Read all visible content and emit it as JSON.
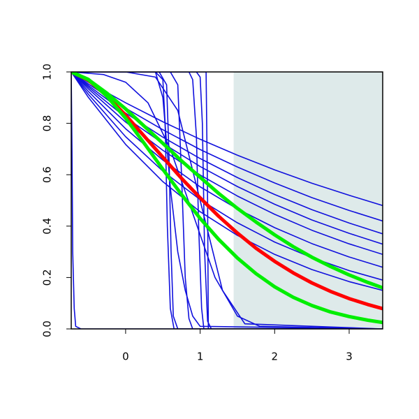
{
  "chart_data": {
    "type": "line",
    "xlim": [
      -0.73,
      3.45
    ],
    "ylim": [
      0,
      1
    ],
    "xticks": [
      0,
      1,
      2,
      3
    ],
    "yticks": [
      {
        "value": 0,
        "label": "0.0"
      },
      0.2,
      0.4,
      0.6,
      0.8,
      {
        "value": 1,
        "label": "1.0"
      }
    ],
    "highlight_x": [
      1.45,
      3.45
    ],
    "highlight_color": "#deeaea",
    "series": [
      {
        "color": "#1010dd",
        "x": [
          -0.73,
          -0.5,
          0,
          0.5,
          1,
          1.5,
          2,
          2.5,
          3,
          3.45
        ],
        "values": [
          1,
          0.96,
          0.88,
          0.806,
          0.738,
          0.676,
          0.619,
          0.567,
          0.52,
          0.48
        ]
      },
      {
        "color": "#1010dd",
        "x": [
          -0.73,
          -0.5,
          0,
          0.5,
          1,
          1.5,
          2,
          2.5,
          3,
          3.45
        ],
        "values": [
          1,
          0.953,
          0.859,
          0.775,
          0.698,
          0.63,
          0.568,
          0.511,
          0.461,
          0.42
        ]
      },
      {
        "color": "#1010dd",
        "x": [
          -0.73,
          -0.5,
          0,
          0.5,
          1,
          1.5,
          2,
          2.5,
          3,
          3.45
        ],
        "values": [
          1,
          0.947,
          0.84,
          0.746,
          0.663,
          0.589,
          0.523,
          0.464,
          0.412,
          0.37
        ]
      },
      {
        "color": "#1010dd",
        "x": [
          -0.73,
          -0.5,
          0,
          0.5,
          1,
          1.5,
          2,
          2.5,
          3,
          3.45
        ],
        "values": [
          1,
          0.941,
          0.823,
          0.722,
          0.632,
          0.554,
          0.485,
          0.424,
          0.372,
          0.33
        ]
      },
      {
        "color": "#1010dd",
        "x": [
          -0.73,
          -0.5,
          0,
          0.5,
          1,
          1.5,
          2,
          2.5,
          3,
          3.45
        ],
        "values": [
          1,
          0.934,
          0.805,
          0.695,
          0.599,
          0.517,
          0.446,
          0.384,
          0.331,
          0.29
        ]
      },
      {
        "color": "#1010dd",
        "x": [
          -0.73,
          -0.5,
          0,
          0.5,
          1,
          1.5,
          2,
          2.5,
          3,
          3.45
        ],
        "values": [
          1,
          0.924,
          0.779,
          0.657,
          0.553,
          0.467,
          0.394,
          0.332,
          0.28,
          0.24
        ]
      },
      {
        "color": "#1010dd",
        "x": [
          -0.73,
          -0.5,
          0,
          0.5,
          1,
          1.5,
          2,
          2.5,
          3,
          3.45
        ],
        "values": [
          1,
          0.913,
          0.748,
          0.614,
          0.503,
          0.413,
          0.338,
          0.277,
          0.227,
          0.19
        ]
      },
      {
        "color": "#1010dd",
        "x": [
          -0.73,
          -0.5,
          0,
          0.5,
          1,
          1.5,
          2,
          2.5,
          3,
          3.45
        ],
        "values": [
          1,
          0.901,
          0.718,
          0.573,
          0.456,
          0.364,
          0.29,
          0.231,
          0.184,
          0.15
        ]
      },
      {
        "color": "#1010dd",
        "x": [
          -0.73,
          -0.72,
          -0.71,
          -0.69,
          -0.67,
          -0.6,
          3.45
        ],
        "values": [
          1,
          0.7,
          0.3,
          0.08,
          0.01,
          0,
          0
        ]
      },
      {
        "color": "#1010dd",
        "x": [
          -0.73,
          0.4,
          0.5,
          0.53,
          0.56,
          0.6,
          0.65,
          3.45
        ],
        "values": [
          1,
          1,
          0.97,
          0.8,
          0.4,
          0.08,
          0,
          0
        ]
      },
      {
        "color": "#1010dd",
        "x": [
          -0.73,
          0.45,
          0.55,
          0.58,
          0.61,
          0.64,
          0.7,
          3.45
        ],
        "values": [
          1,
          1,
          0.95,
          0.7,
          0.3,
          0.05,
          0,
          0
        ]
      },
      {
        "color": "#1010dd",
        "x": [
          -0.73,
          0.6,
          0.7,
          0.75,
          0.8,
          0.85,
          0.9,
          3.45
        ],
        "values": [
          1,
          1,
          0.95,
          0.6,
          0.2,
          0.04,
          0,
          0
        ]
      },
      {
        "color": "#1010dd",
        "x": [
          -0.73,
          0.85,
          0.9,
          0.95,
          0.98,
          1.02,
          1.05,
          3.45
        ],
        "values": [
          1,
          1,
          0.97,
          0.75,
          0.4,
          0.08,
          0,
          0
        ]
      },
      {
        "color": "#1010dd",
        "x": [
          -0.73,
          0.95,
          1.0,
          1.03,
          1.06,
          1.1,
          1.15,
          3.45
        ],
        "values": [
          1,
          1,
          0.98,
          0.8,
          0.3,
          0.03,
          0,
          0
        ]
      },
      {
        "color": "#1010dd",
        "x": [
          -0.73,
          1.08,
          1.1,
          1.11,
          3.45
        ],
        "values": [
          1,
          1,
          0.5,
          0,
          0
        ]
      },
      {
        "color": "#1010dd",
        "x": [
          -0.73,
          -0.3,
          0,
          0.3,
          0.6,
          0.9,
          1.2,
          1.5,
          1.8,
          3.45
        ],
        "values": [
          1,
          0.99,
          0.96,
          0.88,
          0.7,
          0.45,
          0.2,
          0.05,
          0.01,
          0
        ]
      },
      {
        "color": "#1010dd",
        "x": [
          -0.73,
          0,
          0.4,
          0.7,
          1.0,
          1.3,
          1.6,
          3.45
        ],
        "values": [
          1,
          1,
          0.98,
          0.85,
          0.5,
          0.15,
          0.02,
          0
        ]
      },
      {
        "color": "#1010dd",
        "x": [
          -0.73,
          0.4,
          0.5,
          0.6,
          0.7,
          0.8,
          0.9,
          1.0,
          3.45
        ],
        "values": [
          1,
          1,
          0.9,
          0.55,
          0.3,
          0.15,
          0.05,
          0.01,
          0
        ]
      },
      {
        "color": "#ff0000",
        "x": [
          -0.73,
          -0.5,
          -0.25,
          0,
          0.25,
          0.5,
          0.75,
          1,
          1.25,
          1.5,
          1.75,
          2,
          2.25,
          2.5,
          2.75,
          3,
          3.25,
          3.45
        ],
        "values": [
          1,
          0.968,
          0.906,
          0.832,
          0.75,
          0.668,
          0.586,
          0.51,
          0.438,
          0.373,
          0.314,
          0.263,
          0.218,
          0.179,
          0.146,
          0.118,
          0.095,
          0.079
        ]
      },
      {
        "color": "#00ee00",
        "x": [
          -0.73,
          -0.5,
          -0.25,
          0,
          0.25,
          0.5,
          0.75,
          1,
          1.25,
          1.5,
          1.75,
          2,
          2.25,
          2.5,
          2.75,
          3,
          3.25,
          3.45
        ],
        "values": [
          1,
          0.971,
          0.905,
          0.82,
          0.722,
          0.621,
          0.523,
          0.43,
          0.348,
          0.276,
          0.215,
          0.164,
          0.123,
          0.091,
          0.066,
          0.048,
          0.034,
          0.025
        ]
      },
      {
        "color": "#00ee00",
        "x": [
          -0.73,
          -0.5,
          -0.25,
          0,
          0.25,
          0.5,
          0.75,
          1,
          1.25,
          1.5,
          1.75,
          2,
          2.25,
          2.5,
          2.75,
          3,
          3.25,
          3.45
        ],
        "values": [
          1,
          0.97,
          0.917,
          0.856,
          0.789,
          0.722,
          0.654,
          0.59,
          0.527,
          0.469,
          0.416,
          0.366,
          0.32,
          0.279,
          0.243,
          0.21,
          0.181,
          0.16
        ]
      }
    ]
  }
}
